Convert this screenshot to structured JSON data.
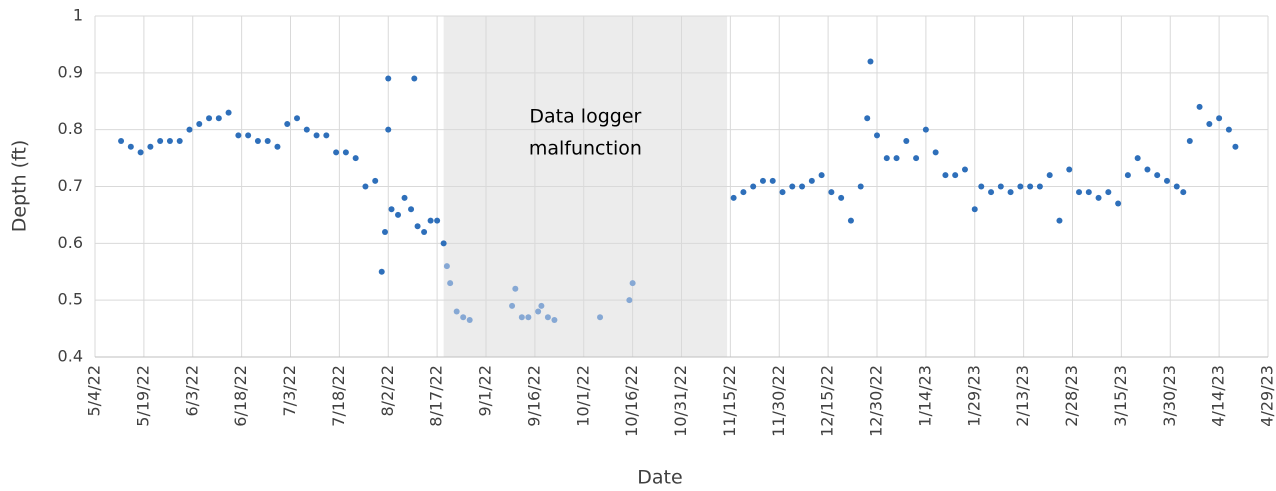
{
  "chart_data": {
    "type": "scatter",
    "x_label": "Date",
    "y_label": "Depth (ft)",
    "xlim": [
      "5/4/22",
      "4/29/23"
    ],
    "xticks": [
      "5/4/22",
      "5/19/22",
      "6/3/22",
      "6/18/22",
      "7/3/22",
      "7/18/22",
      "8/2/22",
      "8/17/22",
      "9/1/22",
      "9/16/22",
      "10/1/22",
      "10/16/22",
      "10/31/22",
      "11/15/22",
      "11/30/22",
      "12/15/22",
      "12/30/22",
      "1/14/23",
      "1/29/23",
      "2/13/23",
      "2/28/23",
      "3/15/23",
      "3/30/23",
      "4/14/23",
      "4/29/23"
    ],
    "ylim": [
      0.4,
      1
    ],
    "yticks": [
      0.4,
      0.5,
      0.6,
      0.7,
      0.8,
      0.9,
      1
    ],
    "grid": true,
    "annotation": {
      "text": [
        "Data logger",
        "malfunction"
      ],
      "span": [
        "8/19/22",
        "11/14/22"
      ],
      "color": "#ececec"
    },
    "series": [
      {
        "color": "#2e6fba",
        "x": [
          "5/12/22",
          "5/15/22",
          "5/18/22",
          "5/21/22",
          "5/24/22",
          "5/27/22",
          "5/30/22",
          "6/2/22",
          "6/5/22",
          "6/8/22",
          "6/11/22",
          "6/14/22",
          "6/17/22",
          "6/20/22",
          "6/23/22",
          "6/26/22",
          "6/29/22",
          "7/2/22",
          "7/5/22",
          "7/8/22",
          "7/11/22",
          "7/14/22",
          "7/17/22",
          "7/20/22",
          "7/23/22",
          "7/26/22",
          "7/29/22",
          "7/31/22",
          "8/1/22",
          "8/2/22",
          "8/2/22",
          "8/3/22",
          "8/5/22",
          "8/7/22",
          "8/9/22",
          "8/10/22",
          "8/11/22",
          "8/13/22",
          "8/15/22",
          "8/17/22",
          "8/19/22",
          "11/16/22",
          "11/19/22",
          "11/22/22",
          "11/25/22",
          "11/28/22",
          "12/1/22",
          "12/4/22",
          "12/7/22",
          "12/10/22",
          "12/13/22",
          "12/16/22",
          "12/19/22",
          "12/22/22",
          "12/25/22",
          "12/27/22",
          "12/28/22",
          "12/30/22",
          "1/2/23",
          "1/5/23",
          "1/8/23",
          "1/11/23",
          "1/14/23",
          "1/17/23",
          "1/20/23",
          "1/23/23",
          "1/26/23",
          "1/29/23",
          "1/31/23",
          "2/3/23",
          "2/6/23",
          "2/9/23",
          "2/12/23",
          "2/15/23",
          "2/18/23",
          "2/21/23",
          "2/24/23",
          "2/27/23",
          "3/2/23",
          "3/5/23",
          "3/8/23",
          "3/11/23",
          "3/14/23",
          "3/17/23",
          "3/20/23",
          "3/23/23",
          "3/26/23",
          "3/29/23",
          "4/1/23",
          "4/3/23",
          "4/5/23",
          "4/8/23",
          "4/11/23",
          "4/14/23",
          "4/17/23",
          "4/19/23"
        ],
        "values": [
          0.78,
          0.77,
          0.76,
          0.77,
          0.78,
          0.78,
          0.78,
          0.8,
          0.81,
          0.82,
          0.82,
          0.83,
          0.79,
          0.79,
          0.78,
          0.78,
          0.77,
          0.81,
          0.82,
          0.8,
          0.79,
          0.79,
          0.76,
          0.76,
          0.75,
          0.7,
          0.71,
          0.55,
          0.62,
          0.89,
          0.8,
          0.66,
          0.65,
          0.68,
          0.66,
          0.89,
          0.63,
          0.62,
          0.64,
          0.64,
          0.6,
          0.68,
          0.69,
          0.7,
          0.71,
          0.71,
          0.69,
          0.7,
          0.7,
          0.71,
          0.72,
          0.69,
          0.68,
          0.64,
          0.7,
          0.82,
          0.92,
          0.79,
          0.75,
          0.75,
          0.78,
          0.75,
          0.8,
          0.76,
          0.72,
          0.72,
          0.73,
          0.66,
          0.7,
          0.69,
          0.7,
          0.69,
          0.7,
          0.7,
          0.7,
          0.72,
          0.64,
          0.73,
          0.69,
          0.69,
          0.68,
          0.69,
          0.67,
          0.72,
          0.75,
          0.73,
          0.72,
          0.71,
          0.7,
          0.69,
          0.78,
          0.84,
          0.81,
          0.82,
          0.8,
          0.77
        ]
      },
      {
        "color": "#86a8d4",
        "x": [
          "8/20/22",
          "8/21/22",
          "8/23/22",
          "8/25/22",
          "8/27/22",
          "9/9/22",
          "9/10/22",
          "9/12/22",
          "9/14/22",
          "9/17/22",
          "9/18/22",
          "9/20/22",
          "9/22/22",
          "10/6/22",
          "10/15/22",
          "10/16/22"
        ],
        "values": [
          0.56,
          0.53,
          0.48,
          0.47,
          0.465,
          0.49,
          0.52,
          0.47,
          0.47,
          0.48,
          0.49,
          0.47,
          0.465,
          0.47,
          0.5,
          0.53
        ]
      }
    ]
  }
}
